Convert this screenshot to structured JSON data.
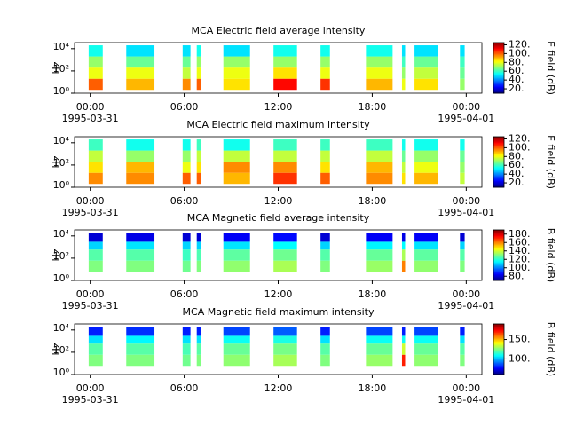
{
  "chart_data": [
    {
      "type": "spectrogram",
      "title": "MCA  Electric field average intensity",
      "ylabel": "Hz",
      "log_y": true,
      "xlim": [
        -1,
        25
      ],
      "xticks": [
        {
          "value": 0,
          "label": "00:00"
        },
        {
          "value": 6,
          "label": "06:00"
        },
        {
          "value": 12,
          "label": "12:00"
        },
        {
          "value": 18,
          "label": "18:00"
        },
        {
          "value": 24,
          "label": "00:00"
        }
      ],
      "x_dates": [
        {
          "value": 0,
          "label": "1995-03-31"
        },
        {
          "value": 24,
          "label": "1995-04-01"
        }
      ],
      "ylim": [
        1,
        35000
      ],
      "yticks": [
        {
          "value": 1,
          "label": "10⁰"
        },
        {
          "value": 100,
          "label": "10²"
        },
        {
          "value": 10000,
          "label": "10⁴"
        }
      ],
      "x_intervals": [
        [
          -0.1,
          0.8
        ],
        [
          2.3,
          4.1
        ],
        [
          5.9,
          6.4
        ],
        [
          6.8,
          7.1
        ],
        [
          8.5,
          10.2
        ],
        [
          11.7,
          13.2
        ],
        [
          14.7,
          15.3
        ],
        [
          17.6,
          19.3
        ],
        [
          19.9,
          20.1
        ],
        [
          20.7,
          22.2
        ],
        [
          23.6,
          23.9
        ]
      ],
      "freq_edges": [
        2,
        20,
        200,
        2000,
        20000
      ],
      "values": [
        [
          100,
          80,
          70,
          55
        ],
        [
          90,
          80,
          65,
          50
        ],
        [
          95,
          75,
          65,
          50
        ],
        [
          100,
          80,
          70,
          55
        ],
        [
          85,
          80,
          70,
          50
        ],
        [
          110,
          85,
          70,
          55
        ],
        [
          105,
          80,
          70,
          55
        ],
        [
          90,
          80,
          70,
          55
        ],
        [
          80,
          70,
          60,
          50
        ],
        [
          85,
          75,
          65,
          50
        ],
        [
          70,
          65,
          60,
          50
        ]
      ],
      "zlabel": "E field (dB)",
      "zlim": [
        10,
        125
      ],
      "zticks": [
        {
          "value": 20,
          "label": "20."
        },
        {
          "value": 40,
          "label": "40."
        },
        {
          "value": 60,
          "label": "60."
        },
        {
          "value": 80,
          "label": "80."
        },
        {
          "value": 100,
          "label": "100."
        },
        {
          "value": 120,
          "label": "120."
        }
      ]
    },
    {
      "type": "spectrogram",
      "title": "MCA  Electric field maximum intensity",
      "ylabel": "Hz",
      "log_y": true,
      "xlim": [
        -1,
        25
      ],
      "xticks": [
        {
          "value": 0,
          "label": "00:00"
        },
        {
          "value": 6,
          "label": "06:00"
        },
        {
          "value": 12,
          "label": "12:00"
        },
        {
          "value": 18,
          "label": "18:00"
        },
        {
          "value": 24,
          "label": "00:00"
        }
      ],
      "x_dates": [
        {
          "value": 0,
          "label": "1995-03-31"
        },
        {
          "value": 24,
          "label": "1995-04-01"
        }
      ],
      "ylim": [
        1,
        35000
      ],
      "yticks": [
        {
          "value": 1,
          "label": "10⁰"
        },
        {
          "value": 100,
          "label": "10²"
        },
        {
          "value": 10000,
          "label": "10⁴"
        }
      ],
      "x_intervals": [
        [
          -0.1,
          0.8
        ],
        [
          2.3,
          4.1
        ],
        [
          5.9,
          6.4
        ],
        [
          6.8,
          7.1
        ],
        [
          8.5,
          10.2
        ],
        [
          11.7,
          13.2
        ],
        [
          14.7,
          15.3
        ],
        [
          17.6,
          19.3
        ],
        [
          19.9,
          20.1
        ],
        [
          20.7,
          22.2
        ],
        [
          23.6,
          23.9
        ]
      ],
      "freq_edges": [
        2,
        20,
        200,
        2000,
        20000
      ],
      "values": [
        [
          95,
          85,
          75,
          60
        ],
        [
          95,
          90,
          70,
          55
        ],
        [
          100,
          80,
          70,
          55
        ],
        [
          100,
          85,
          75,
          60
        ],
        [
          90,
          95,
          75,
          55
        ],
        [
          105,
          95,
          75,
          60
        ],
        [
          100,
          85,
          75,
          60
        ],
        [
          95,
          90,
          75,
          60
        ],
        [
          85,
          75,
          65,
          55
        ],
        [
          90,
          80,
          70,
          55
        ],
        [
          75,
          70,
          65,
          55
        ]
      ],
      "zlabel": "E field (dB)",
      "zlim": [
        10,
        125
      ],
      "zticks": [
        {
          "value": 20,
          "label": "20."
        },
        {
          "value": 40,
          "label": "40."
        },
        {
          "value": 60,
          "label": "60."
        },
        {
          "value": 80,
          "label": "80."
        },
        {
          "value": 100,
          "label": "100."
        },
        {
          "value": 120,
          "label": "120."
        }
      ]
    },
    {
      "type": "spectrogram",
      "title": "MCA  Magnetic field average intensity",
      "ylabel": "Hz",
      "log_y": true,
      "xlim": [
        -1,
        25
      ],
      "xticks": [
        {
          "value": 0,
          "label": "00:00"
        },
        {
          "value": 6,
          "label": "06:00"
        },
        {
          "value": 12,
          "label": "12:00"
        },
        {
          "value": 18,
          "label": "18:00"
        },
        {
          "value": 24,
          "label": "00:00"
        }
      ],
      "x_dates": [
        {
          "value": 0,
          "label": "1995-03-31"
        },
        {
          "value": 24,
          "label": "1995-04-01"
        }
      ],
      "ylim": [
        1,
        35000
      ],
      "yticks": [
        {
          "value": 1,
          "label": "10⁰"
        },
        {
          "value": 100,
          "label": "10²"
        },
        {
          "value": 10000,
          "label": "10⁴"
        }
      ],
      "x_intervals": [
        [
          -0.1,
          0.8
        ],
        [
          2.3,
          4.1
        ],
        [
          5.9,
          6.4
        ],
        [
          6.8,
          7.1
        ],
        [
          8.5,
          10.2
        ],
        [
          11.7,
          13.2
        ],
        [
          14.7,
          15.3
        ],
        [
          17.6,
          19.3
        ],
        [
          19.9,
          20.1
        ],
        [
          20.7,
          22.2
        ],
        [
          23.6,
          23.9
        ]
      ],
      "freq_edges": [
        6,
        60,
        600,
        3000,
        20000
      ],
      "values": [
        [
          130,
          125,
          110,
          80
        ],
        [
          130,
          125,
          112,
          82
        ],
        [
          128,
          122,
          110,
          80
        ],
        [
          130,
          124,
          110,
          80
        ],
        [
          132,
          126,
          112,
          84
        ],
        [
          135,
          128,
          115,
          86
        ],
        [
          130,
          125,
          110,
          80
        ],
        [
          133,
          127,
          114,
          84
        ],
        [
          160,
          135,
          115,
          82
        ],
        [
          132,
          126,
          112,
          84
        ],
        [
          130,
          125,
          110,
          80
        ]
      ],
      "zlabel": "B field (dB)",
      "zlim": [
        70,
        190
      ],
      "zticks": [
        {
          "value": 80,
          "label": "80."
        },
        {
          "value": 100,
          "label": "100."
        },
        {
          "value": 120,
          "label": "120."
        },
        {
          "value": 140,
          "label": "140."
        },
        {
          "value": 160,
          "label": "160."
        },
        {
          "value": 180,
          "label": "180."
        }
      ]
    },
    {
      "type": "spectrogram",
      "title": "MCA  Magnetic field maximum intensity",
      "ylabel": "Hz",
      "log_y": true,
      "xlim": [
        -1,
        25
      ],
      "xticks": [
        {
          "value": 0,
          "label": "00:00"
        },
        {
          "value": 6,
          "label": "06:00"
        },
        {
          "value": 12,
          "label": "12:00"
        },
        {
          "value": 18,
          "label": "18:00"
        },
        {
          "value": 24,
          "label": "00:00"
        }
      ],
      "x_dates": [
        {
          "value": 0,
          "label": "1995-03-31"
        },
        {
          "value": 24,
          "label": "1995-04-01"
        }
      ],
      "ylim": [
        1,
        35000
      ],
      "yticks": [
        {
          "value": 1,
          "label": "10⁰"
        },
        {
          "value": 100,
          "label": "10²"
        },
        {
          "value": 10000,
          "label": "10⁴"
        }
      ],
      "x_intervals": [
        [
          -0.1,
          0.8
        ],
        [
          2.3,
          4.1
        ],
        [
          5.9,
          6.4
        ],
        [
          6.8,
          7.1
        ],
        [
          8.5,
          10.2
        ],
        [
          11.7,
          13.2
        ],
        [
          14.7,
          15.3
        ],
        [
          17.6,
          19.3
        ],
        [
          19.9,
          20.1
        ],
        [
          20.7,
          22.2
        ],
        [
          23.6,
          23.9
        ]
      ],
      "freq_edges": [
        6,
        60,
        600,
        3000,
        20000
      ],
      "values": [
        [
          125,
          120,
          105,
          80
        ],
        [
          125,
          120,
          108,
          82
        ],
        [
          123,
          118,
          105,
          80
        ],
        [
          125,
          120,
          105,
          80
        ],
        [
          127,
          122,
          110,
          85
        ],
        [
          130,
          124,
          112,
          88
        ],
        [
          125,
          120,
          105,
          80
        ],
        [
          128,
          122,
          110,
          85
        ],
        [
          170,
          135,
          110,
          80
        ],
        [
          127,
          122,
          110,
          85
        ],
        [
          125,
          120,
          105,
          80
        ]
      ],
      "zlabel": "B field (dB)",
      "zlim": [
        60,
        190
      ],
      "zticks": [
        {
          "value": 100,
          "label": "100."
        },
        {
          "value": 150,
          "label": "150."
        }
      ]
    }
  ]
}
